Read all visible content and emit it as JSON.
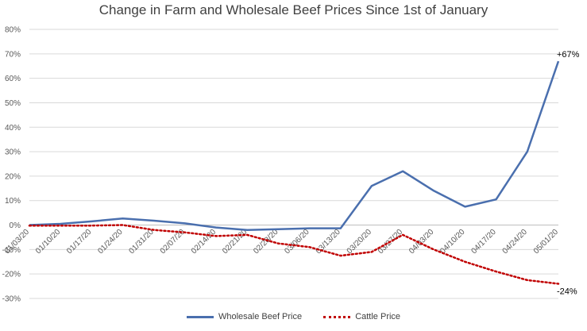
{
  "chart_data": {
    "type": "line",
    "title": "Change in Farm and Wholesale Beef Prices Since 1st of January",
    "x": [
      "01/03/20",
      "01/10/20",
      "01/17/20",
      "01/24/20",
      "01/31/20",
      "02/07/20",
      "02/14/20",
      "02/21/20",
      "02/28/20",
      "03/06/20",
      "03/13/20",
      "03/20/20",
      "03/27/20",
      "04/03/20",
      "04/10/20",
      "04/17/20",
      "04/24/20",
      "05/01/20"
    ],
    "ylim": [
      -30,
      80
    ],
    "yticks": [
      -30,
      -20,
      -10,
      0,
      10,
      20,
      30,
      40,
      50,
      60,
      70,
      80
    ],
    "ytick_labels": [
      "-30%",
      "-20%",
      "-10%",
      "0%",
      "10%",
      "20%",
      "30%",
      "40%",
      "50%",
      "60%",
      "70%",
      "80%"
    ],
    "grid": true,
    "legend_position": "bottom",
    "series": [
      {
        "name": "Wholesale Beef Price",
        "color": "#4a6fae",
        "style": "solid",
        "values": [
          0,
          0.5,
          1.5,
          2.7,
          1.8,
          0.7,
          -1,
          -2,
          -1.7,
          -1.3,
          -1.3,
          16,
          22,
          14,
          7.5,
          10.5,
          30,
          67
        ]
      },
      {
        "name": "Cattle Price",
        "color": "#c00000",
        "style": "dotted",
        "values": [
          -0.2,
          -0.2,
          -0.2,
          0,
          -2,
          -3,
          -4.5,
          -4,
          -7.5,
          -9,
          -12.5,
          -11,
          -4,
          -10,
          -15,
          -19,
          -22.5,
          -24
        ]
      }
    ],
    "annotations": [
      {
        "text": "+67%",
        "series": 0,
        "index": 17
      },
      {
        "text": "-24%",
        "series": 1,
        "index": 17
      }
    ]
  }
}
